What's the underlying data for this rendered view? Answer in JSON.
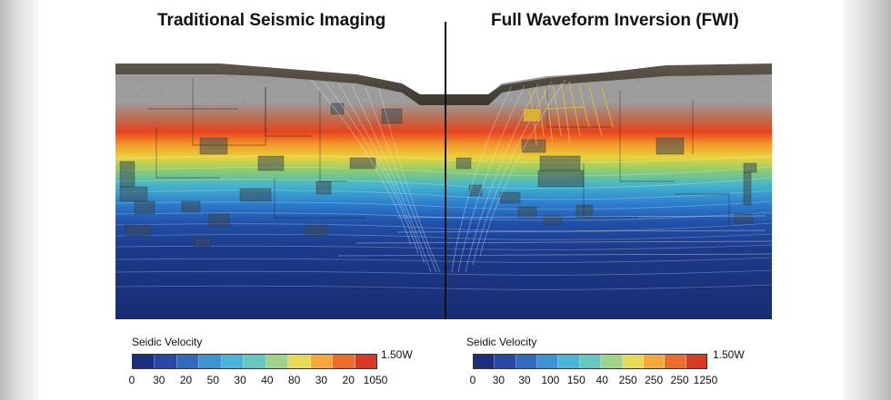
{
  "left_panel": {
    "title": "Traditional Seismic Imaging",
    "legend": {
      "label": "Seidic Velocity",
      "max_label": "1.50W",
      "ticks": [
        "0",
        "30",
        "20",
        "50",
        "30",
        "40",
        "80",
        "30",
        "20",
        "1050"
      ],
      "colors": [
        "#1c2f7e",
        "#2748a5",
        "#2f6cc0",
        "#3e93d4",
        "#4cb3d9",
        "#67c8be",
        "#9fd48a",
        "#e6da52",
        "#f4a73a",
        "#ee6d2c",
        "#d83a25"
      ]
    }
  },
  "right_panel": {
    "title": "Full Waveform Inversion (FWI)",
    "legend": {
      "label": "Seidic Velocity",
      "max_label": "1.50W",
      "ticks": [
        "0",
        "30",
        "30",
        "100",
        "150",
        "40",
        "250",
        "250",
        "250",
        "1250"
      ],
      "colors": [
        "#1c2f7e",
        "#2748a5",
        "#2f6cc0",
        "#3e93d4",
        "#4cb3d9",
        "#67c8be",
        "#9fd48a",
        "#e6da52",
        "#f4a73a",
        "#ee6d2c",
        "#d83a25"
      ]
    }
  }
}
